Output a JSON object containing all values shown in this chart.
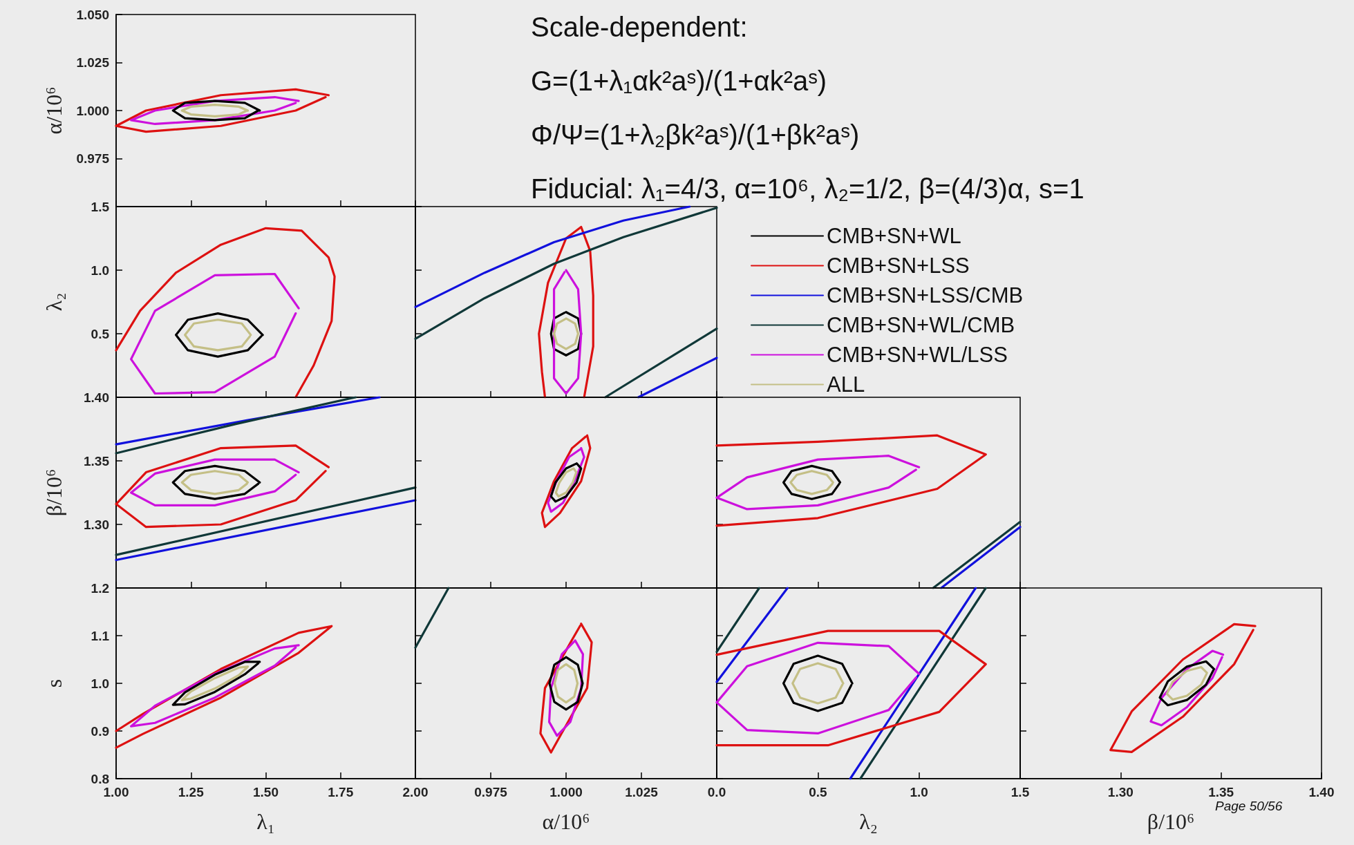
{
  "chart_data": [
    {
      "type": "line",
      "ylabel": "α/10⁶",
      "xlim": [
        1,
        2
      ],
      "ylim": [
        0.95,
        1.05
      ],
      "yticks": [
        {
          "value": 0.95,
          "label": null
        },
        {
          "value": 0.975,
          "label": "0.975"
        },
        {
          "value": 1,
          "label": "1.000"
        },
        {
          "value": 1.025,
          "label": "1.025"
        },
        {
          "value": 1.05,
          "label": "1.050"
        }
      ],
      "tick_labels": "y",
      "marker": "none",
      "series": [
        {
          "color": "#dd1111",
          "x": [
            1.71,
            1.6,
            1.35,
            1.1,
            1.0,
            1.1,
            1.35,
            1.6,
            1.7
          ],
          "values": [
            1.008,
            1.011,
            1.008,
            1.0,
            0.992,
            0.989,
            0.992,
            1.0,
            1.007
          ]
        },
        {
          "color": "#cc11dd",
          "x": [
            1.61,
            1.53,
            1.33,
            1.13,
            1.05,
            1.13,
            1.33,
            1.53,
            1.6
          ],
          "values": [
            1.005,
            1.007,
            1.005,
            1.0,
            0.995,
            0.993,
            0.995,
            1.0,
            1.004
          ]
        },
        {
          "color": "#000000",
          "x": [
            1.48,
            1.43,
            1.33,
            1.23,
            1.19,
            1.23,
            1.33,
            1.43,
            1.475
          ],
          "values": [
            1.0,
            1.004,
            1.005,
            1.004,
            1.0,
            0.996,
            0.995,
            0.996,
            1.0
          ]
        },
        {
          "color": "#c4bf86",
          "x": [
            1.44,
            1.41,
            1.33,
            1.25,
            1.22,
            1.25,
            1.33,
            1.41,
            1.437
          ],
          "values": [
            1.0,
            1.002,
            1.003,
            1.002,
            1.0,
            0.998,
            0.997,
            0.998,
            1.0
          ]
        }
      ]
    },
    {
      "type": "other",
      "title": "Scale-dependent:",
      "annotations": [
        "G=(1+λ₁αk²aˢ)/(1+αk²aˢ)",
        "Φ/Ψ=(1+λ₂βk²aˢ)/(1+βk²aˢ)",
        "Fiducial: λ₁=4/3, α=10⁶, λ₂=1/2, β=(4/3)α, s=1",
        "Page 50/56"
      ]
    },
    {
      "type": "line",
      "ylabel": "λ₂",
      "xlim": [
        1,
        2
      ],
      "ylim": [
        0,
        1.5
      ],
      "yticks": [
        {
          "value": 0,
          "label": null
        },
        {
          "value": 0.5,
          "label": "0.5"
        },
        {
          "value": 1,
          "label": "1.0"
        },
        {
          "value": 1.5,
          "label": "1.5"
        }
      ],
      "tick_labels": "y",
      "marker": "none",
      "series": [
        {
          "color": "#dd1111",
          "x": [
            1.0,
            1.08,
            1.2,
            1.35,
            1.5,
            1.62,
            1.71,
            1.73,
            1.72,
            1.66,
            1.6
          ],
          "values": [
            0.37,
            0.68,
            0.98,
            1.2,
            1.33,
            1.31,
            1.1,
            0.95,
            0.6,
            0.25,
            0.0
          ]
        },
        {
          "color": "#cc11dd",
          "x": [
            1.61,
            1.53,
            1.33,
            1.13,
            1.05,
            1.13,
            1.33,
            1.53,
            1.6
          ],
          "values": [
            0.7,
            0.97,
            0.96,
            0.68,
            0.3,
            0.03,
            0.04,
            0.32,
            0.66
          ]
        },
        {
          "color": "#000000",
          "x": [
            1.49,
            1.44,
            1.34,
            1.24,
            1.2,
            1.24,
            1.34,
            1.44,
            1.485
          ],
          "values": [
            0.49,
            0.61,
            0.66,
            0.61,
            0.49,
            0.37,
            0.32,
            0.37,
            0.48
          ]
        },
        {
          "color": "#c4bf86",
          "x": [
            1.45,
            1.42,
            1.34,
            1.26,
            1.23,
            1.26,
            1.34,
            1.42,
            1.447
          ],
          "values": [
            0.49,
            0.58,
            0.61,
            0.58,
            0.49,
            0.4,
            0.37,
            0.4,
            0.48
          ]
        }
      ]
    },
    {
      "type": "line",
      "xlim": [
        0.95,
        1.05
      ],
      "ylim": [
        0,
        1.5
      ],
      "tick_labels": false,
      "marker": "none",
      "legend": "right",
      "series": [
        {
          "name": "CMB+SN+WL",
          "color": "#000000",
          "x": [
            1.0,
            1.004,
            1.005,
            1.004,
            1.0,
            0.996,
            0.995,
            0.996,
            0.9995
          ],
          "values": [
            0.67,
            0.62,
            0.5,
            0.38,
            0.33,
            0.38,
            0.5,
            0.62,
            0.665
          ]
        },
        {
          "name": "CMB+SN+LSS",
          "color": "#dd1111",
          "x": [
            1.006,
            1.009,
            1.009,
            1.008,
            1.005,
            1.0,
            0.994,
            0.991,
            0.992,
            0.993
          ],
          "values": [
            0.0,
            0.4,
            0.8,
            1.15,
            1.34,
            1.25,
            0.9,
            0.5,
            0.2,
            0.0
          ]
        },
        {
          "name": "CMB+SN+LSS/CMB",
          "color": "#1111dd",
          "x": [
            0.95,
            0.973,
            0.996,
            1.019,
            1.041
          ],
          "values": [
            0.71,
            0.98,
            1.22,
            1.39,
            1.5
          ]
        },
        {
          "name": "CMB+SN+WL/CMB",
          "color": "#103838",
          "x": [
            0.95,
            0.973,
            0.996,
            1.019,
            1.05
          ],
          "values": [
            0.46,
            0.78,
            1.05,
            1.26,
            1.49
          ]
        },
        {
          "name": "CMB+SN+WL/LSS",
          "color": "#cc11dd",
          "x": [
            1.0,
            1.004,
            1.005,
            1.004,
            1.0,
            0.996,
            0.996,
            0.996,
            0.9995
          ],
          "values": [
            1.0,
            0.85,
            0.5,
            0.15,
            0.03,
            0.15,
            0.5,
            0.85,
            0.985
          ]
        },
        {
          "name": "ALL",
          "color": "#c4bf86",
          "x": [
            1.0,
            1.003,
            1.004,
            1.003,
            1.0,
            0.997,
            0.996,
            0.997,
            0.9997
          ],
          "values": [
            0.62,
            0.58,
            0.5,
            0.42,
            0.38,
            0.42,
            0.5,
            0.58,
            0.615
          ]
        },
        {
          "color": "#103838",
          "x": [
            1.013,
            1.05
          ],
          "values": [
            0.0,
            0.54
          ]
        },
        {
          "color": "#1111dd",
          "x": [
            1.024,
            1.05
          ],
          "values": [
            0.0,
            0.31
          ]
        }
      ]
    },
    {
      "type": "line",
      "ylabel": "β/10⁶",
      "xlim": [
        1,
        2
      ],
      "ylim": [
        1.25,
        1.4
      ],
      "yticks": [
        {
          "value": 1.25,
          "label": null
        },
        {
          "value": 1.3,
          "label": "1.30"
        },
        {
          "value": 1.35,
          "label": "1.35"
        },
        {
          "value": 1.4,
          "label": "1.40"
        }
      ],
      "tick_labels": "y",
      "marker": "none",
      "series": [
        {
          "color": "#1111dd",
          "x": [
            1.0,
            1.44,
            1.88
          ],
          "values": [
            1.363,
            1.382,
            1.4
          ]
        },
        {
          "color": "#103838",
          "x": [
            1.0,
            1.4,
            1.8
          ],
          "values": [
            1.356,
            1.379,
            1.4
          ]
        },
        {
          "color": "#103838",
          "x": [
            1.0,
            2.0
          ],
          "values": [
            1.276,
            1.329
          ]
        },
        {
          "color": "#1111dd",
          "x": [
            1.0,
            2.0
          ],
          "values": [
            1.272,
            1.319
          ]
        },
        {
          "color": "#dd1111",
          "x": [
            1.71,
            1.6,
            1.35,
            1.1,
            1.0,
            1.1,
            1.35,
            1.6,
            1.7
          ],
          "values": [
            1.345,
            1.362,
            1.36,
            1.341,
            1.316,
            1.298,
            1.3,
            1.319,
            1.342
          ]
        },
        {
          "color": "#cc11dd",
          "x": [
            1.61,
            1.53,
            1.33,
            1.13,
            1.05,
            1.13,
            1.33,
            1.53,
            1.6
          ],
          "values": [
            1.341,
            1.351,
            1.351,
            1.34,
            1.325,
            1.315,
            1.315,
            1.326,
            1.339
          ]
        },
        {
          "color": "#000000",
          "x": [
            1.48,
            1.43,
            1.33,
            1.23,
            1.19,
            1.23,
            1.33,
            1.43,
            1.475
          ],
          "values": [
            1.333,
            1.342,
            1.346,
            1.342,
            1.333,
            1.324,
            1.32,
            1.324,
            1.332
          ]
        },
        {
          "color": "#c4bf86",
          "x": [
            1.44,
            1.41,
            1.33,
            1.25,
            1.22,
            1.25,
            1.33,
            1.41,
            1.437
          ],
          "values": [
            1.333,
            1.339,
            1.342,
            1.339,
            1.333,
            1.327,
            1.324,
            1.327,
            1.332
          ]
        }
      ]
    },
    {
      "type": "line",
      "xlim": [
        0.95,
        1.05
      ],
      "ylim": [
        1.25,
        1.4
      ],
      "tick_labels": false,
      "marker": "none",
      "series": [
        {
          "color": "#dd1111",
          "x": [
            1.007,
            1.008,
            1.005,
            0.998,
            0.993,
            0.992,
            0.996,
            1.002,
            1.0065
          ],
          "values": [
            1.37,
            1.36,
            1.334,
            1.309,
            1.298,
            1.309,
            1.334,
            1.36,
            1.369
          ]
        },
        {
          "color": "#cc11dd",
          "x": [
            1.005,
            1.006,
            1.003,
            0.999,
            0.995,
            0.994,
            0.997,
            1.001,
            1.0046
          ],
          "values": [
            1.36,
            1.353,
            1.335,
            1.317,
            1.31,
            1.317,
            1.335,
            1.353,
            1.359
          ]
        },
        {
          "color": "#000000",
          "x": [
            1.0035,
            1.005,
            1.0035,
            1.0,
            0.9965,
            0.995,
            0.9965,
            1.0,
            1.0031
          ],
          "values": [
            1.348,
            1.344,
            1.333,
            1.322,
            1.318,
            1.322,
            1.333,
            1.344,
            1.3475
          ]
        },
        {
          "color": "#c4bf86",
          "x": [
            1.0025,
            1.0034,
            1.0022,
            1.0,
            0.9975,
            0.9966,
            0.9978,
            1.0,
            1.0022
          ],
          "values": [
            1.344,
            1.341,
            1.333,
            1.325,
            1.322,
            1.325,
            1.333,
            1.341,
            1.3437
          ]
        }
      ]
    },
    {
      "type": "line",
      "xlim": [
        0,
        1.5
      ],
      "ylim": [
        1.25,
        1.4
      ],
      "tick_labels": false,
      "marker": "none",
      "series": [
        {
          "color": "#103838",
          "x": [
            1.07,
            1.5
          ],
          "values": [
            1.25,
            1.302
          ]
        },
        {
          "color": "#1111dd",
          "x": [
            1.11,
            1.5
          ],
          "values": [
            1.25,
            1.298
          ]
        },
        {
          "color": "#dd1111",
          "x": [
            0.0,
            0.5,
            1.09,
            1.33,
            1.09,
            0.5,
            0.0
          ],
          "values": [
            1.362,
            1.365,
            1.37,
            1.355,
            1.328,
            1.305,
            1.299
          ]
        },
        {
          "color": "#cc11dd",
          "x": [
            1.0,
            0.85,
            0.5,
            0.15,
            0.0,
            0.15,
            0.5,
            0.85,
            0.985
          ],
          "values": [
            1.345,
            1.354,
            1.351,
            1.337,
            1.321,
            1.312,
            1.315,
            1.329,
            1.343
          ]
        },
        {
          "color": "#000000",
          "x": [
            0.61,
            0.57,
            0.47,
            0.37,
            0.33,
            0.37,
            0.47,
            0.57,
            0.606
          ],
          "values": [
            1.333,
            1.342,
            1.346,
            1.342,
            1.333,
            1.324,
            1.32,
            1.324,
            1.332
          ]
        },
        {
          "color": "#c4bf86",
          "x": [
            0.575,
            0.544,
            0.47,
            0.396,
            0.365,
            0.396,
            0.47,
            0.544,
            0.572
          ],
          "values": [
            1.333,
            1.339,
            1.342,
            1.339,
            1.333,
            1.327,
            1.324,
            1.327,
            1.332
          ]
        }
      ]
    },
    {
      "type": "line",
      "xlabel": "λ₁",
      "ylabel": "s",
      "xlim": [
        1,
        2
      ],
      "xticks": [
        {
          "value": 1,
          "label": "1.00"
        },
        {
          "value": 1.25,
          "label": "1.25"
        },
        {
          "value": 1.5,
          "label": "1.50"
        },
        {
          "value": 1.75,
          "label": "1.75"
        },
        {
          "value": 2,
          "label": "2.00"
        }
      ],
      "ylim": [
        0.8,
        1.2
      ],
      "yticks": [
        {
          "value": 0.8,
          "label": "0.8"
        },
        {
          "value": 0.9,
          "label": "0.9"
        },
        {
          "value": 1,
          "label": "1.0"
        },
        {
          "value": 1.1,
          "label": "1.1"
        },
        {
          "value": 1.2,
          "label": "1.2"
        }
      ],
      "marker": "none",
      "series": [
        {
          "color": "#dd1111",
          "x": [
            1.0,
            1.09,
            1.35,
            1.61,
            1.72,
            1.61,
            1.35,
            1.09,
            1.0
          ],
          "values": [
            0.9,
            0.936,
            1.03,
            1.106,
            1.12,
            1.064,
            0.97,
            0.894,
            0.865
          ]
        },
        {
          "color": "#cc11dd",
          "x": [
            1.61,
            1.53,
            1.33,
            1.13,
            1.05,
            1.13,
            1.33,
            1.53,
            1.6
          ],
          "values": [
            1.08,
            1.073,
            1.02,
            0.953,
            0.91,
            0.917,
            0.97,
            1.037,
            1.075
          ]
        },
        {
          "color": "#000000",
          "x": [
            1.48,
            1.43,
            1.33,
            1.23,
            1.19,
            1.23,
            1.33,
            1.43,
            1.475
          ],
          "values": [
            1.045,
            1.045,
            1.018,
            0.981,
            0.955,
            0.956,
            0.982,
            1.019,
            1.042
          ]
        },
        {
          "color": "#c4bf86",
          "x": [
            1.44,
            1.41,
            1.33,
            1.25,
            1.22,
            1.25,
            1.33,
            1.41,
            1.437
          ],
          "values": [
            1.035,
            1.033,
            1.011,
            0.983,
            0.965,
            0.968,
            0.989,
            1.017,
            1.033
          ]
        }
      ]
    },
    {
      "type": "line",
      "xlabel": "α/10⁶",
      "xlim": [
        0.95,
        1.05
      ],
      "xticks": [
        {
          "value": 0.95,
          "label": null
        },
        {
          "value": 0.975,
          "label": "0.975"
        },
        {
          "value": 1,
          "label": "1.000"
        },
        {
          "value": 1.025,
          "label": "1.025"
        },
        {
          "value": 1.05,
          "label": null
        }
      ],
      "ylim": [
        0.8,
        1.2
      ],
      "tick_labels": "x",
      "marker": "none",
      "series": [
        {
          "color": "#103838",
          "x": [
            0.95,
            0.961
          ],
          "values": [
            1.075,
            1.2
          ]
        },
        {
          "color": "#dd1111",
          "x": [
            1.005,
            1.0085,
            1.007,
            0.9985,
            0.995,
            0.9915,
            0.993,
            1.0015,
            1.0047
          ],
          "values": [
            1.125,
            1.086,
            0.99,
            0.895,
            0.855,
            0.895,
            0.99,
            1.086,
            1.121
          ]
        },
        {
          "color": "#cc11dd",
          "x": [
            1.003,
            1.0056,
            1.005,
            1.0014,
            0.997,
            0.9944,
            0.995,
            0.9986,
            1.0026
          ],
          "values": [
            1.09,
            1.061,
            0.99,
            0.919,
            0.89,
            0.919,
            0.99,
            1.061,
            1.087
          ]
        },
        {
          "color": "#000000",
          "x": [
            1.0,
            1.0039,
            1.0055,
            1.0039,
            1.0,
            0.9961,
            0.9945,
            0.9961,
            0.9996
          ],
          "values": [
            1.055,
            1.039,
            1.0,
            0.961,
            0.945,
            0.961,
            1.0,
            1.039,
            1.053
          ]
        },
        {
          "color": "#c4bf86",
          "x": [
            1.0,
            1.0027,
            1.0038,
            1.0027,
            1.0,
            0.9973,
            0.9962,
            0.9973,
            0.9997
          ],
          "values": [
            1.04,
            1.028,
            1.0,
            0.972,
            0.96,
            0.972,
            1.0,
            1.028,
            1.039
          ]
        }
      ]
    },
    {
      "type": "line",
      "xlabel": "λ₂",
      "xlim": [
        0,
        1.5
      ],
      "xticks": [
        {
          "value": 0,
          "label": "0.0"
        },
        {
          "value": 0.5,
          "label": "0.5"
        },
        {
          "value": 1,
          "label": "1.0"
        },
        {
          "value": 1.5,
          "label": "1.5"
        }
      ],
      "ylim": [
        0.8,
        1.2
      ],
      "tick_labels": "x",
      "marker": "none",
      "series": [
        {
          "color": "#103838",
          "x": [
            0.0,
            0.21
          ],
          "values": [
            1.066,
            1.2
          ]
        },
        {
          "color": "#1111dd",
          "x": [
            0.0,
            0.35
          ],
          "values": [
            1.003,
            1.2
          ]
        },
        {
          "color": "#1111dd",
          "x": [
            0.66,
            1.28
          ],
          "values": [
            0.8,
            1.2
          ]
        },
        {
          "color": "#103838",
          "x": [
            0.71,
            1.33
          ],
          "values": [
            0.8,
            1.2
          ]
        },
        {
          "color": "#dd1111",
          "x": [
            0.0,
            0.55,
            1.1,
            1.33,
            1.1,
            0.55,
            0.0
          ],
          "values": [
            1.06,
            1.11,
            1.11,
            1.04,
            0.94,
            0.87,
            0.87
          ]
        },
        {
          "color": "#cc11dd",
          "x": [
            1.0,
            0.85,
            0.5,
            0.15,
            0.0,
            0.15,
            0.5,
            0.85,
            0.985
          ],
          "values": [
            1.02,
            1.078,
            1.085,
            1.036,
            0.96,
            0.902,
            0.895,
            0.944,
            1.012
          ]
        },
        {
          "color": "#000000",
          "x": [
            0.67,
            0.62,
            0.5,
            0.38,
            0.33,
            0.38,
            0.5,
            0.62,
            0.665
          ],
          "values": [
            1.0,
            1.041,
            1.058,
            1.041,
            1.0,
            0.959,
            0.942,
            0.959,
            0.996
          ]
        },
        {
          "color": "#c4bf86",
          "x": [
            0.625,
            0.588,
            0.5,
            0.412,
            0.375,
            0.412,
            0.5,
            0.588,
            0.621
          ],
          "values": [
            1.0,
            1.03,
            1.042,
            1.03,
            1.0,
            0.97,
            0.958,
            0.97,
            0.997
          ]
        }
      ]
    },
    {
      "type": "line",
      "xlabel": "β/10⁶",
      "xlim": [
        1.25,
        1.4
      ],
      "xticks": [
        {
          "value": 1.25,
          "label": null
        },
        {
          "value": 1.3,
          "label": "1.30"
        },
        {
          "value": 1.35,
          "label": "1.35"
        },
        {
          "value": 1.4,
          "label": "1.40"
        }
      ],
      "ylim": [
        0.8,
        1.2
      ],
      "tick_labels": "x",
      "marker": "none",
      "series": [
        {
          "color": "#dd1111",
          "x": [
            1.367,
            1.3565,
            1.331,
            1.3055,
            1.295,
            1.3055,
            1.331,
            1.3565,
            1.366
          ],
          "values": [
            1.12,
            1.124,
            1.05,
            0.941,
            0.86,
            0.856,
            0.93,
            1.04,
            1.112
          ]
        },
        {
          "color": "#cc11dd",
          "x": [
            1.351,
            1.3457,
            1.333,
            1.3203,
            1.315,
            1.3203,
            1.333,
            1.3457,
            1.3505
          ],
          "values": [
            1.06,
            1.068,
            1.03,
            0.969,
            0.92,
            0.912,
            0.95,
            1.011,
            1.055
          ]
        },
        {
          "color": "#000000",
          "x": [
            1.3465,
            1.3425,
            1.333,
            1.3235,
            1.3195,
            1.3235,
            1.333,
            1.3425,
            1.3461
          ],
          "values": [
            1.03,
            1.046,
            1.035,
            1.004,
            0.97,
            0.954,
            0.965,
            0.997,
            1.027
          ]
        },
        {
          "color": "#c4bf86",
          "x": [
            1.343,
            1.3401,
            1.333,
            1.3259,
            1.323,
            1.3259,
            1.333,
            1.3401,
            1.3427
          ],
          "values": [
            1.022,
            1.034,
            1.026,
            1.003,
            0.978,
            0.966,
            0.974,
            0.997,
            1.019
          ]
        }
      ]
    }
  ]
}
